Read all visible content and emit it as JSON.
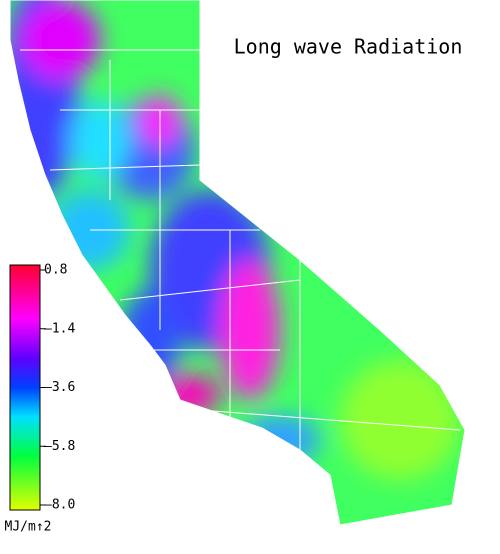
{
  "title": "Long wave Radiation",
  "legend": {
    "unit": "MJ/m↑2",
    "range": [
      -8.0,
      0.8
    ],
    "ticks": [
      0.8,
      {
        "value": -1.4,
        "label": "–1.4"
      },
      {
        "value": -3.6,
        "label": "–3.6"
      },
      {
        "value": -5.8,
        "label": "–5.8"
      },
      {
        "value": -8.0,
        "label": "–8.0"
      }
    ]
  }
}
